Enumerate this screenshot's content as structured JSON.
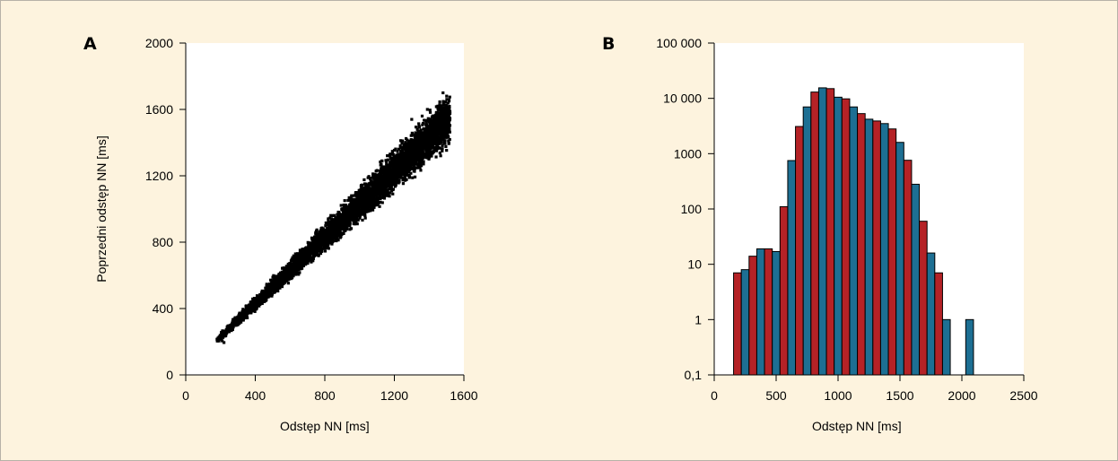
{
  "colors": {
    "background": "#fdf3de",
    "plot_background": "#ffffff",
    "border": "#b7b1a7",
    "scatter_point": "#000000",
    "bar_blue": "#1d6f93",
    "bar_red": "#b52226",
    "bar_outline": "#000000"
  },
  "chart_data": [
    {
      "panel": "A",
      "type": "scatter",
      "xlabel": "Odstęp NN [ms]",
      "ylabel": "Poprzedni odstęp NN [ms]",
      "xlim": [
        0,
        1600
      ],
      "ylim": [
        0,
        2000
      ],
      "xticks": [
        "0",
        "400",
        "800",
        "1200",
        "1600"
      ],
      "yticks": [
        "0",
        "400",
        "800",
        "1200",
        "1600",
        "2000"
      ],
      "xtick_values": [
        0,
        400,
        800,
        1200,
        1600
      ],
      "ytick_values": [
        0,
        400,
        800,
        1200,
        1600,
        2000
      ],
      "grid": false,
      "cloud": {
        "x_range": [
          180,
          1520
        ],
        "relation": "y ≈ x",
        "description_only": true
      },
      "points": [
        [
          180,
          215
        ],
        [
          200,
          225
        ],
        [
          210,
          205
        ],
        [
          220,
          195
        ],
        [
          230,
          235
        ],
        [
          250,
          260
        ],
        [
          260,
          300
        ],
        [
          280,
          320
        ],
        [
          300,
          330
        ],
        [
          310,
          360
        ],
        [
          330,
          350
        ],
        [
          340,
          390
        ],
        [
          360,
          400
        ],
        [
          370,
          380
        ],
        [
          390,
          420
        ],
        [
          400,
          440
        ],
        [
          420,
          470
        ],
        [
          440,
          430
        ],
        [
          450,
          500
        ],
        [
          470,
          480
        ],
        [
          480,
          530
        ],
        [
          500,
          520
        ],
        [
          520,
          560
        ],
        [
          540,
          540
        ],
        [
          560,
          610
        ],
        [
          580,
          580
        ],
        [
          600,
          650
        ],
        [
          620,
          620
        ],
        [
          640,
          690
        ],
        [
          660,
          660
        ],
        [
          680,
          720
        ],
        [
          700,
          700
        ],
        [
          720,
          760
        ],
        [
          740,
          740
        ],
        [
          760,
          800
        ],
        [
          780,
          770
        ],
        [
          800,
          850
        ],
        [
          820,
          820
        ],
        [
          840,
          890
        ],
        [
          860,
          860
        ],
        [
          880,
          930
        ],
        [
          900,
          900
        ],
        [
          920,
          970
        ],
        [
          940,
          930
        ],
        [
          960,
          1010
        ],
        [
          980,
          980
        ],
        [
          1000,
          1050
        ],
        [
          1020,
          1010
        ],
        [
          1040,
          1090
        ],
        [
          1060,
          1060
        ],
        [
          1080,
          1130
        ],
        [
          1100,
          1100
        ],
        [
          1120,
          1170
        ],
        [
          1140,
          1130
        ],
        [
          1160,
          1210
        ],
        [
          1180,
          1180
        ],
        [
          1200,
          1250
        ],
        [
          1220,
          1210
        ],
        [
          1240,
          1290
        ],
        [
          1260,
          1260
        ],
        [
          1280,
          1330
        ],
        [
          1300,
          1290
        ],
        [
          1320,
          1370
        ],
        [
          1340,
          1340
        ],
        [
          1360,
          1410
        ],
        [
          1380,
          1380
        ],
        [
          1400,
          1450
        ],
        [
          1420,
          1420
        ],
        [
          1440,
          1490
        ],
        [
          1460,
          1460
        ],
        [
          1480,
          1530
        ],
        [
          1500,
          1500
        ],
        [
          1515,
          1650
        ],
        [
          1505,
          1560
        ],
        [
          1480,
          1700
        ],
        [
          1450,
          1620
        ],
        [
          1420,
          1560
        ],
        [
          1390,
          1600
        ],
        [
          1360,
          1560
        ],
        [
          1300,
          1540
        ]
      ]
    },
    {
      "panel": "B",
      "type": "bar",
      "scale": "log",
      "xlabel": "Odstęp NN [ms]",
      "ylabel": "",
      "xlim": [
        0,
        2500
      ],
      "ylim": [
        0.1,
        100000
      ],
      "xticks": [
        "0",
        "500",
        "1000",
        "1500",
        "2000",
        "2500"
      ],
      "yticks": [
        "0,1",
        "1",
        "10",
        "100",
        "1000",
        "10 000",
        "100 000"
      ],
      "xtick_values": [
        0,
        500,
        1000,
        1500,
        2000,
        2500
      ],
      "ytick_values": [
        0.1,
        1,
        10,
        100,
        1000,
        10000,
        100000
      ],
      "grid": false,
      "bar_width": 62.5,
      "bars": [
        {
          "x": 187.5,
          "value": 7,
          "color": "red"
        },
        {
          "x": 250,
          "value": 8,
          "color": "blue"
        },
        {
          "x": 312.5,
          "value": 14,
          "color": "red"
        },
        {
          "x": 375,
          "value": 19,
          "color": "blue"
        },
        {
          "x": 437.5,
          "value": 19,
          "color": "red"
        },
        {
          "x": 500,
          "value": 17,
          "color": "blue"
        },
        {
          "x": 562.5,
          "value": 110,
          "color": "red"
        },
        {
          "x": 625,
          "value": 750,
          "color": "blue"
        },
        {
          "x": 687.5,
          "value": 3100,
          "color": "red"
        },
        {
          "x": 750,
          "value": 7000,
          "color": "blue"
        },
        {
          "x": 812.5,
          "value": 13000,
          "color": "red"
        },
        {
          "x": 875,
          "value": 15500,
          "color": "blue"
        },
        {
          "x": 937.5,
          "value": 15000,
          "color": "red"
        },
        {
          "x": 1000,
          "value": 10500,
          "color": "blue"
        },
        {
          "x": 1062.5,
          "value": 9800,
          "color": "red"
        },
        {
          "x": 1125,
          "value": 7000,
          "color": "blue"
        },
        {
          "x": 1187.5,
          "value": 5300,
          "color": "red"
        },
        {
          "x": 1250,
          "value": 4200,
          "color": "blue"
        },
        {
          "x": 1312.5,
          "value": 3900,
          "color": "red"
        },
        {
          "x": 1375,
          "value": 3500,
          "color": "blue"
        },
        {
          "x": 1437.5,
          "value": 2800,
          "color": "red"
        },
        {
          "x": 1500,
          "value": 1600,
          "color": "blue"
        },
        {
          "x": 1562.5,
          "value": 760,
          "color": "red"
        },
        {
          "x": 1625,
          "value": 280,
          "color": "blue"
        },
        {
          "x": 1687.5,
          "value": 60,
          "color": "red"
        },
        {
          "x": 1750,
          "value": 16,
          "color": "blue"
        },
        {
          "x": 1812.5,
          "value": 7,
          "color": "red"
        },
        {
          "x": 1875,
          "value": 1,
          "color": "blue"
        },
        {
          "x": 2062.5,
          "value": 1,
          "color": "blue"
        }
      ]
    }
  ]
}
